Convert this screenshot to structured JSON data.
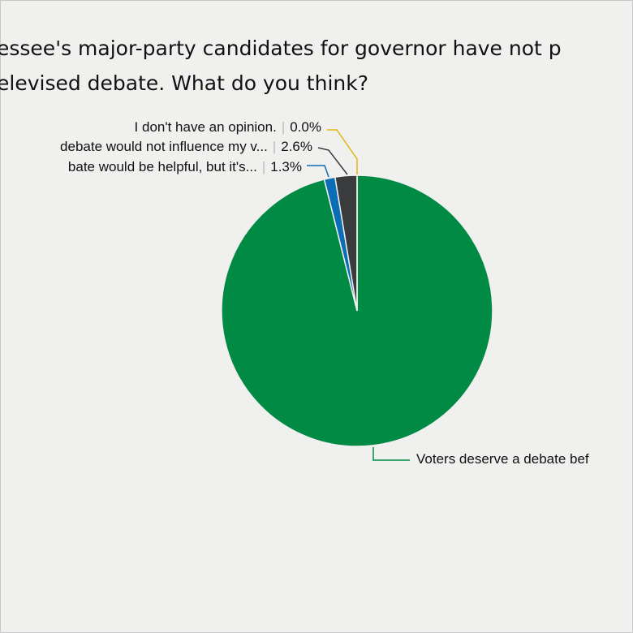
{
  "chart_data": {
    "type": "pie",
    "title_lines": [
      "essee's major-party candidates for governor have not p",
      "elevised debate. What do you think?"
    ],
    "separator": "|",
    "categories": [
      "Voters deserve a debate bef",
      "bate would be helpful, but it's...",
      "debate would not influence my v...",
      "I don't have an opinion."
    ],
    "values": [
      96.1,
      1.3,
      2.6,
      0.0
    ],
    "value_labels": [
      null,
      "1.3%",
      "2.6%",
      "0.0%"
    ],
    "colors": [
      "#008a44",
      "#0b6db5",
      "#3a3b3d",
      "#e3b510"
    ]
  }
}
